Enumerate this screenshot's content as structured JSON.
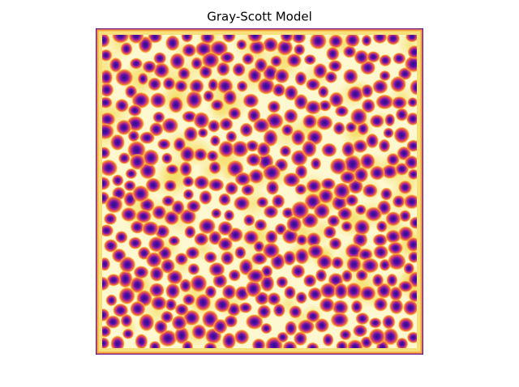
{
  "chart_data": {
    "type": "image",
    "title": "Gray-Scott Model"
  }
}
